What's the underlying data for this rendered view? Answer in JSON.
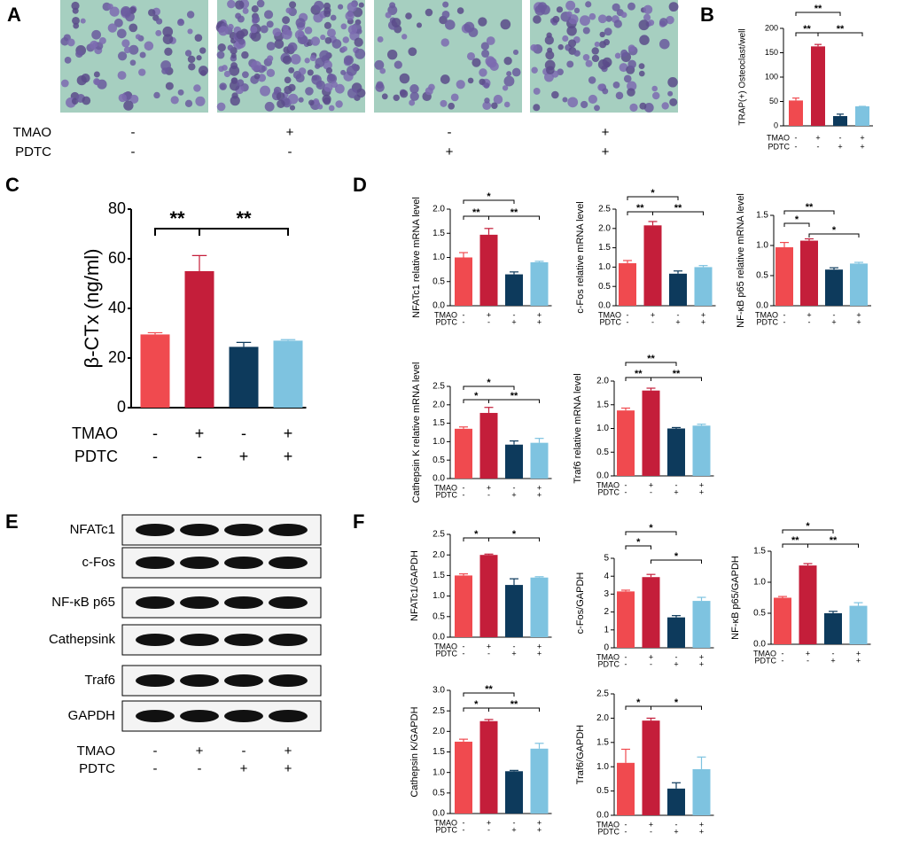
{
  "panel_letters": [
    "A",
    "B",
    "C",
    "D",
    "E",
    "F"
  ],
  "panel_a": {
    "conditions": [
      {
        "name": "TMAO",
        "marks": [
          "-",
          "+",
          "-",
          "+"
        ]
      },
      {
        "name": "PDTC",
        "marks": [
          "-",
          "-",
          "+",
          "+"
        ]
      }
    ]
  },
  "panel_e": {
    "proteins": [
      "NFATc1",
      "c-Fos",
      "NF-κB p65",
      "Cathepsink",
      "Traf6",
      "GAPDH"
    ],
    "conditions": [
      {
        "name": "TMAO",
        "marks": [
          "-",
          "+",
          "-",
          "+"
        ]
      },
      {
        "name": "PDTC",
        "marks": [
          "-",
          "-",
          "+",
          "+"
        ]
      }
    ]
  },
  "chart_data": [
    {
      "type": "bar",
      "y_label": "TRAP(+) Osteoclast/well",
      "values": [
        52,
        163,
        20,
        40
      ],
      "errors": [
        5,
        4,
        4,
        0
      ],
      "colors": [
        "#f04a4f",
        "#c41e3a",
        "#0d3a5c",
        "#7ec3e0"
      ],
      "ylim": [
        0,
        200
      ],
      "yticks": [
        0,
        50,
        100,
        150,
        200
      ],
      "annotations": [
        "**",
        "**",
        "**"
      ],
      "conditions": [
        {
          "name": "TMAO",
          "marks": [
            "-",
            "+",
            "-",
            "+"
          ]
        },
        {
          "name": "PDTC",
          "marks": [
            "-",
            "-",
            "+",
            "+"
          ]
        }
      ]
    },
    {
      "type": "bar",
      "y_label": "β-CTx (ng/ml)",
      "values": [
        29.5,
        55,
        24.5,
        27
      ],
      "errors": [
        0.7,
        6.3,
        1.8,
        0.4
      ],
      "colors": [
        "#f04a4f",
        "#c41e3a",
        "#0d3a5c",
        "#7ec3e0"
      ],
      "ylim": [
        0,
        80
      ],
      "yticks": [
        0,
        20,
        40,
        60,
        80
      ],
      "annotations": [
        "**",
        "**"
      ],
      "conditions": [
        {
          "name": "TMAO",
          "marks": [
            "-",
            "+",
            "-",
            "+"
          ]
        },
        {
          "name": "PDTC",
          "marks": [
            "-",
            "-",
            "+",
            "+"
          ]
        }
      ]
    },
    {
      "type": "bar",
      "y_label": "NFATc1 relative mRNA level",
      "values": [
        1.0,
        1.47,
        0.65,
        0.9
      ],
      "errors": [
        0.1,
        0.13,
        0.05,
        0.02
      ],
      "colors": [
        "#f04a4f",
        "#c41e3a",
        "#0d3a5c",
        "#7ec3e0"
      ],
      "ylim": [
        0,
        2
      ],
      "yticks": [
        {
          "value": 0,
          "label": "0.0"
        },
        0.5,
        {
          "value": 1,
          "label": "1.0"
        },
        1.5,
        {
          "value": 2,
          "label": "2.0"
        }
      ],
      "annotations": [
        "*",
        "**",
        "**"
      ],
      "conditions": [
        {
          "name": "TMAO",
          "marks": [
            "-",
            "+",
            "-",
            "+"
          ]
        },
        {
          "name": "PDTC",
          "marks": [
            "-",
            "-",
            "+",
            "+"
          ]
        }
      ]
    },
    {
      "type": "bar",
      "y_label": "c-Fos relative mRNA level",
      "values": [
        1.1,
        2.08,
        0.83,
        1.0
      ],
      "errors": [
        0.07,
        0.1,
        0.07,
        0.04
      ],
      "colors": [
        "#f04a4f",
        "#c41e3a",
        "#0d3a5c",
        "#7ec3e0"
      ],
      "ylim": [
        0,
        2.5
      ],
      "yticks": [
        {
          "value": 0,
          "label": "0.0"
        },
        0.5,
        {
          "value": 1,
          "label": "1.0"
        },
        1.5,
        {
          "value": 2,
          "label": "2.0"
        },
        2.5
      ],
      "annotations": [
        "*",
        "**",
        "**"
      ],
      "conditions": [
        {
          "name": "TMAO",
          "marks": [
            "-",
            "+",
            "-",
            "+"
          ]
        },
        {
          "name": "PDTC",
          "marks": [
            "-",
            "-",
            "+",
            "+"
          ]
        }
      ]
    },
    {
      "type": "bar",
      "y_label": "NF-κB p65 relative mRNA level",
      "values": [
        0.97,
        1.08,
        0.6,
        0.7
      ],
      "errors": [
        0.08,
        0.03,
        0.03,
        0.02
      ],
      "colors": [
        "#f04a4f",
        "#c41e3a",
        "#0d3a5c",
        "#7ec3e0"
      ],
      "ylim": [
        0,
        1.5
      ],
      "yticks": [
        {
          "value": 0,
          "label": "0.0"
        },
        0.5,
        {
          "value": 1,
          "label": "1.0"
        },
        1.5
      ],
      "annotations": [
        "**",
        "*",
        "*"
      ],
      "conditions": [
        {
          "name": "TMAO",
          "marks": [
            "-",
            "+",
            "-",
            "+"
          ]
        },
        {
          "name": "PDTC",
          "marks": [
            "-",
            "-",
            "+",
            "+"
          ]
        }
      ]
    },
    {
      "type": "bar",
      "y_label": "Cathepsin K relative mRNA level",
      "values": [
        1.35,
        1.78,
        0.92,
        0.97
      ],
      "errors": [
        0.05,
        0.15,
        0.1,
        0.12
      ],
      "colors": [
        "#f04a4f",
        "#c41e3a",
        "#0d3a5c",
        "#7ec3e0"
      ],
      "ylim": [
        0,
        2.5
      ],
      "yticks": [
        {
          "value": 0,
          "label": "0.0"
        },
        0.5,
        {
          "value": 1,
          "label": "1.0"
        },
        1.5,
        {
          "value": 2,
          "label": "2.0"
        },
        2.5
      ],
      "annotations": [
        "*",
        "*",
        "**"
      ],
      "conditions": [
        {
          "name": "TMAO",
          "marks": [
            "-",
            "+",
            "-",
            "+"
          ]
        },
        {
          "name": "PDTC",
          "marks": [
            "-",
            "-",
            "+",
            "+"
          ]
        }
      ]
    },
    {
      "type": "bar",
      "y_label": "Traf6 relative mRNA level",
      "values": [
        1.38,
        1.8,
        1.0,
        1.06
      ],
      "errors": [
        0.05,
        0.05,
        0.02,
        0.03
      ],
      "colors": [
        "#f04a4f",
        "#c41e3a",
        "#0d3a5c",
        "#7ec3e0"
      ],
      "ylim": [
        0,
        2
      ],
      "yticks": [
        {
          "value": 0,
          "label": "0.0"
        },
        0.5,
        {
          "value": 1,
          "label": "1.0"
        },
        1.5,
        {
          "value": 2,
          "label": "2.0"
        }
      ],
      "annotations": [
        "**",
        "**",
        "**"
      ],
      "conditions": [
        {
          "name": "TMAO",
          "marks": [
            "-",
            "+",
            "-",
            "+"
          ]
        },
        {
          "name": "PDTC",
          "marks": [
            "-",
            "-",
            "+",
            "+"
          ]
        }
      ]
    },
    {
      "type": "bar",
      "y_label": "NFATc1/GAPDH",
      "values": [
        1.5,
        2.0,
        1.27,
        1.45
      ],
      "errors": [
        0.04,
        0.02,
        0.15,
        0.02
      ],
      "colors": [
        "#f04a4f",
        "#c41e3a",
        "#0d3a5c",
        "#7ec3e0"
      ],
      "ylim": [
        0,
        2.5
      ],
      "yticks": [
        {
          "value": 0,
          "label": "0.0"
        },
        0.5,
        {
          "value": 1,
          "label": "1.0"
        },
        1.5,
        {
          "value": 2,
          "label": "2.0"
        },
        2.5
      ],
      "annotations": [
        "*",
        "*"
      ],
      "conditions": [
        {
          "name": "TMAO",
          "marks": [
            "-",
            "+",
            "-",
            "+"
          ]
        },
        {
          "name": "PDTC",
          "marks": [
            "-",
            "-",
            "+",
            "+"
          ]
        }
      ]
    },
    {
      "type": "bar",
      "y_label": "c-Fos/GAPDH",
      "values": [
        3.15,
        3.95,
        1.7,
        2.62
      ],
      "errors": [
        0.07,
        0.15,
        0.1,
        0.2
      ],
      "colors": [
        "#f04a4f",
        "#c41e3a",
        "#0d3a5c",
        "#7ec3e0"
      ],
      "ylim": [
        0,
        5
      ],
      "yticks": [
        0,
        1,
        2,
        3,
        4,
        5
      ],
      "annotations": [
        "*",
        "*",
        "*"
      ],
      "conditions": [
        {
          "name": "TMAO",
          "marks": [
            "-",
            "+",
            "-",
            "+"
          ]
        },
        {
          "name": "PDTC",
          "marks": [
            "-",
            "-",
            "+",
            "+"
          ]
        }
      ]
    },
    {
      "type": "bar",
      "y_label": "NF-κB p65/GAPDH",
      "values": [
        0.75,
        1.27,
        0.5,
        0.62
      ],
      "errors": [
        0.02,
        0.03,
        0.03,
        0.05
      ],
      "colors": [
        "#f04a4f",
        "#c41e3a",
        "#0d3a5c",
        "#7ec3e0"
      ],
      "ylim": [
        0,
        1.5
      ],
      "yticks": [
        {
          "value": 0,
          "label": "0.0"
        },
        0.5,
        {
          "value": 1,
          "label": "1.0"
        },
        1.5
      ],
      "annotations": [
        "*",
        "**",
        "**"
      ],
      "conditions": [
        {
          "name": "TMAO",
          "marks": [
            "-",
            "+",
            "-",
            "+"
          ]
        },
        {
          "name": "PDTC",
          "marks": [
            "-",
            "-",
            "+",
            "+"
          ]
        }
      ]
    },
    {
      "type": "bar",
      "y_label": "Cathepsin K/GAPDH",
      "values": [
        1.75,
        2.25,
        1.03,
        1.58
      ],
      "errors": [
        0.06,
        0.04,
        0.02,
        0.13
      ],
      "colors": [
        "#f04a4f",
        "#c41e3a",
        "#0d3a5c",
        "#7ec3e0"
      ],
      "ylim": [
        0,
        3
      ],
      "yticks": [
        {
          "value": 0,
          "label": "0.0"
        },
        0.5,
        {
          "value": 1,
          "label": "1.0"
        },
        1.5,
        {
          "value": 2,
          "label": "2.0"
        },
        2.5,
        {
          "value": 3,
          "label": "3.0"
        }
      ],
      "annotations": [
        "**",
        "*",
        "**"
      ],
      "conditions": [
        {
          "name": "TMAO",
          "marks": [
            "-",
            "+",
            "-",
            "+"
          ]
        },
        {
          "name": "PDTC",
          "marks": [
            "-",
            "-",
            "+",
            "+"
          ]
        }
      ]
    },
    {
      "type": "bar",
      "y_label": "Traf6/GAPDH",
      "values": [
        1.08,
        1.95,
        0.55,
        0.95
      ],
      "errors": [
        0.28,
        0.05,
        0.12,
        0.25
      ],
      "colors": [
        "#f04a4f",
        "#c41e3a",
        "#0d3a5c",
        "#7ec3e0"
      ],
      "ylim": [
        0,
        2.5
      ],
      "yticks": [
        {
          "value": 0,
          "label": "0.0"
        },
        0.5,
        {
          "value": 1,
          "label": "1.0"
        },
        1.5,
        {
          "value": 2,
          "label": "2.0"
        },
        2.5
      ],
      "annotations": [
        "*",
        "*"
      ],
      "conditions": [
        {
          "name": "TMAO",
          "marks": [
            "-",
            "+",
            "-",
            "+"
          ]
        },
        {
          "name": "PDTC",
          "marks": [
            "-",
            "-",
            "+",
            "+"
          ]
        }
      ]
    }
  ]
}
